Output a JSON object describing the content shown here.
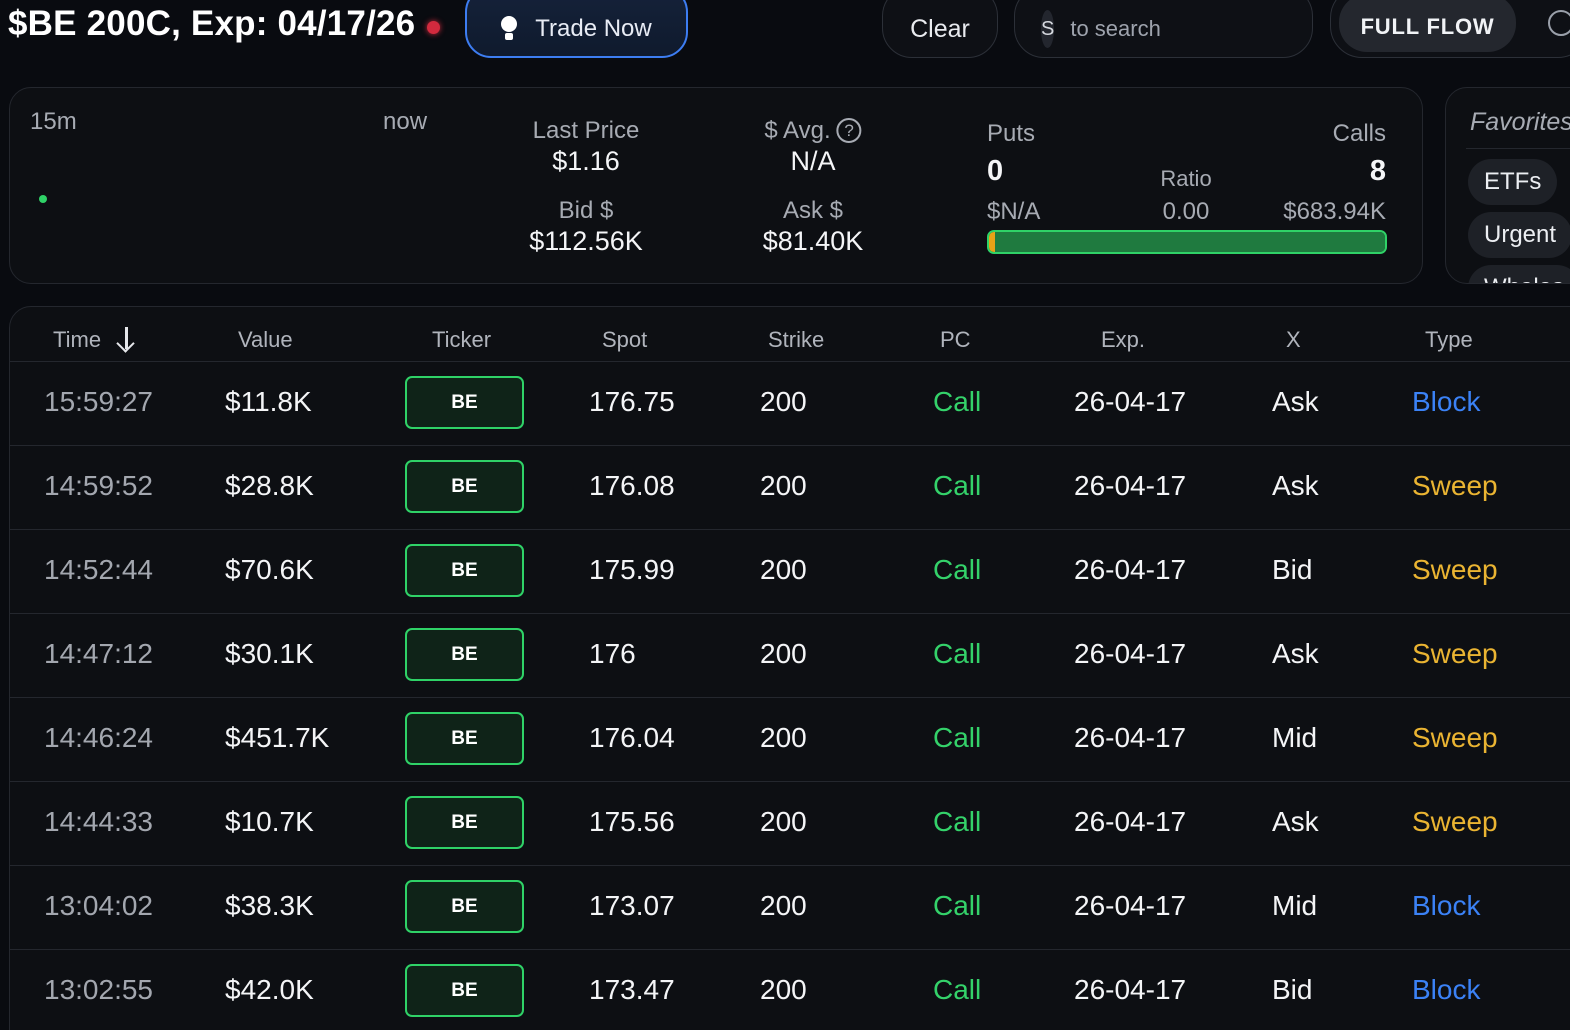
{
  "header": {
    "title": "$BE 200C, Exp: 04/17/26",
    "trade_now_label": "Trade Now",
    "clear_label": "Clear",
    "search_key": "S",
    "search_placeholder": "to search",
    "full_flow_label": "FULL FLOW"
  },
  "summary": {
    "range_start": "15m",
    "range_end": "now",
    "last_price_label": "Last Price",
    "last_price": "$1.16",
    "avg_label": "$ Avg.",
    "avg_value": "N/A",
    "bid_label": "Bid $",
    "bid_value": "$112.56K",
    "ask_label": "Ask $",
    "ask_value": "$81.40K",
    "puts_label": "Puts",
    "puts_count": "0",
    "puts_value": "$N/A",
    "calls_label": "Calls",
    "calls_count": "8",
    "calls_value": "$683.94K",
    "ratio_label": "Ratio",
    "ratio_value": "0.00",
    "call_share": 1.0
  },
  "favorites": {
    "title": "Favorites",
    "chips": [
      "ETFs",
      "Urgent",
      "Whales"
    ]
  },
  "table": {
    "columns": [
      "Time",
      "Value",
      "Ticker",
      "Spot",
      "Strike",
      "PC",
      "Exp.",
      "X",
      "Type"
    ],
    "rows": [
      {
        "time": "15:59:27",
        "value": "$11.8K",
        "ticker": "BE",
        "spot": "176.75",
        "strike": "200",
        "pc": "Call",
        "exp": "26-04-17",
        "x": "Ask",
        "type": "Block"
      },
      {
        "time": "14:59:52",
        "value": "$28.8K",
        "ticker": "BE",
        "spot": "176.08",
        "strike": "200",
        "pc": "Call",
        "exp": "26-04-17",
        "x": "Ask",
        "type": "Sweep"
      },
      {
        "time": "14:52:44",
        "value": "$70.6K",
        "ticker": "BE",
        "spot": "175.99",
        "strike": "200",
        "pc": "Call",
        "exp": "26-04-17",
        "x": "Bid",
        "type": "Sweep"
      },
      {
        "time": "14:47:12",
        "value": "$30.1K",
        "ticker": "BE",
        "spot": "176",
        "strike": "200",
        "pc": "Call",
        "exp": "26-04-17",
        "x": "Ask",
        "type": "Sweep"
      },
      {
        "time": "14:46:24",
        "value": "$451.7K",
        "ticker": "BE",
        "spot": "176.04",
        "strike": "200",
        "pc": "Call",
        "exp": "26-04-17",
        "x": "Mid",
        "type": "Sweep"
      },
      {
        "time": "14:44:33",
        "value": "$10.7K",
        "ticker": "BE",
        "spot": "175.56",
        "strike": "200",
        "pc": "Call",
        "exp": "26-04-17",
        "x": "Ask",
        "type": "Sweep"
      },
      {
        "time": "13:04:02",
        "value": "$38.3K",
        "ticker": "BE",
        "spot": "173.07",
        "strike": "200",
        "pc": "Call",
        "exp": "26-04-17",
        "x": "Mid",
        "type": "Block"
      },
      {
        "time": "13:02:55",
        "value": "$42.0K",
        "ticker": "BE",
        "spot": "173.47",
        "strike": "200",
        "pc": "Call",
        "exp": "26-04-17",
        "x": "Bid",
        "type": "Block"
      }
    ]
  },
  "colors": {
    "call": "#34d26a",
    "block": "#3b82f6",
    "sweep": "#eab432",
    "live": "#d22a3e",
    "accent": "#3d7df2"
  }
}
